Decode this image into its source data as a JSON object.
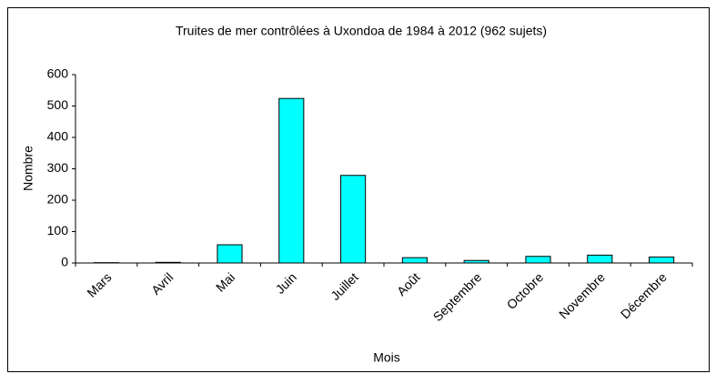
{
  "chart_data": {
    "type": "bar",
    "title": "Truites de mer contrôlées à Uxondoa de 1984 à 2012 (962 sujets)",
    "x_label": "Mois",
    "y_label": "Nombre",
    "categories": [
      "Mars",
      "Avril",
      "Mai",
      "Juin",
      "Juillet",
      "Août",
      "Septembre",
      "Octobre",
      "Novembre",
      "Décembre"
    ],
    "values": [
      1,
      2,
      58,
      524,
      279,
      17,
      8,
      21,
      25,
      19
    ],
    "color": "#00ffff",
    "ylim": [
      0,
      600
    ],
    "yticks": [
      0,
      100,
      200,
      300,
      400,
      500,
      600
    ],
    "grid": false
  }
}
